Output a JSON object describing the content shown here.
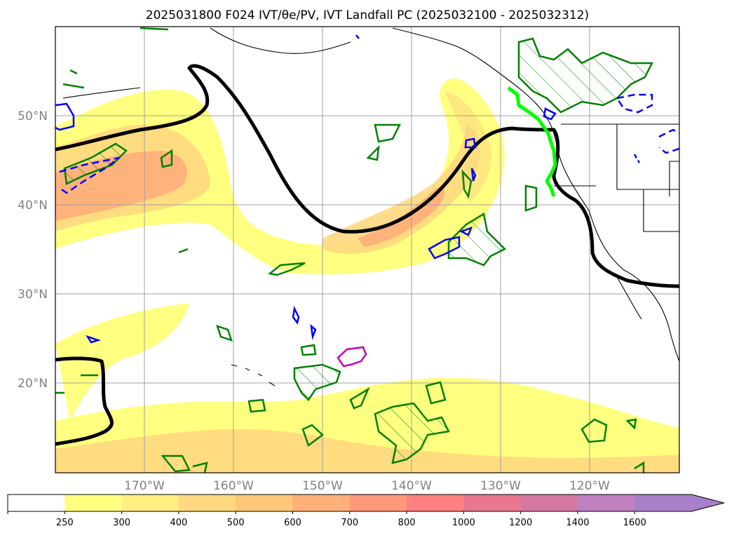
{
  "title": "2025031800 F024 IVT/θe/PV, IVT Landfall PC (2025032100 - 2025032312)",
  "map": {
    "lat_labels": [
      "50°N",
      "40°N",
      "30°N",
      "20°N"
    ],
    "lon_labels": [
      "170°W",
      "160°W",
      "150°W",
      "140°W",
      "130°W",
      "120°W"
    ],
    "gridlines": true,
    "extent": {
      "lon": [
        -180,
        -110
      ],
      "lat": [
        10,
        60
      ]
    }
  },
  "colorbar": {
    "ticks": [
      "250",
      "300",
      "400",
      "500",
      "600",
      "700",
      "800",
      "1000",
      "1200",
      "1400",
      "1600"
    ],
    "colors": [
      "#ffffff",
      "#ffff80",
      "#ffee80",
      "#ffd880",
      "#ffc878",
      "#ffb078",
      "#ff9878",
      "#ff8080",
      "#e87890",
      "#d478a0",
      "#c080c0",
      "#a880c8"
    ],
    "extend": "max"
  },
  "colors": {
    "ivt_low": "#ffff80",
    "ivt_mid": "#ffd880",
    "ivt_high": "#ffa878",
    "theta_e_contour": "#000000",
    "pv_green": "#008000",
    "pv_blue": "#0000ff",
    "pv_magenta": "#c000c0",
    "landfall_line": "#00ff00"
  }
}
